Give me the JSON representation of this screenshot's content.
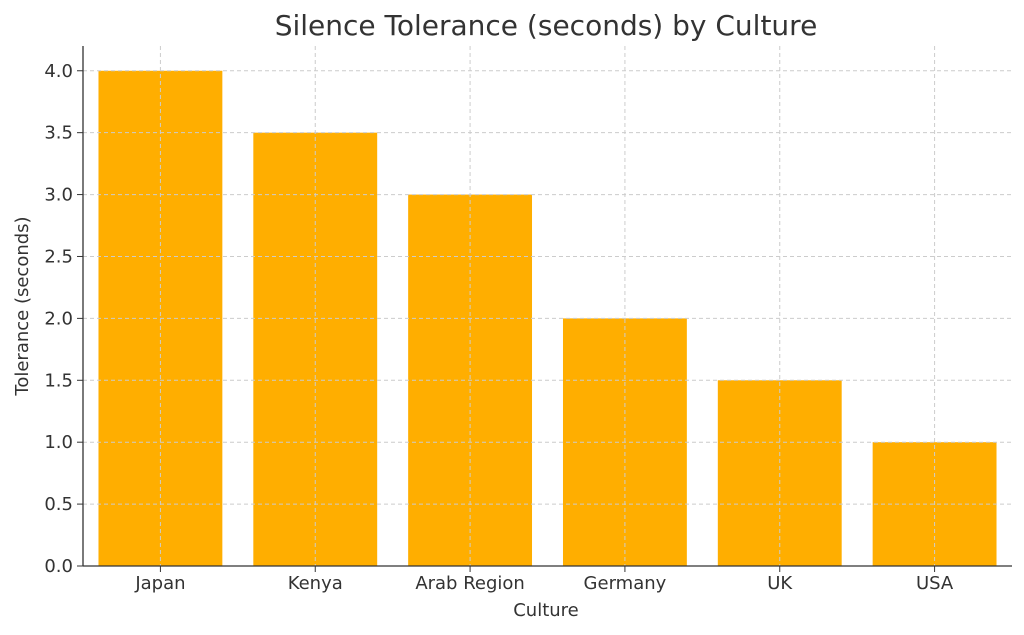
{
  "chart_data": {
    "type": "bar",
    "title": "Silence Tolerance (seconds) by Culture",
    "xlabel": "Culture",
    "ylabel": "Tolerance (seconds)",
    "categories": [
      "Japan",
      "Kenya",
      "Arab Region",
      "Germany",
      "UK",
      "USA"
    ],
    "values": [
      4.0,
      3.5,
      3.0,
      2.0,
      1.5,
      1.0
    ],
    "ylim": [
      0,
      4.2
    ],
    "yticks": [
      "0.0",
      "0.5",
      "1.0",
      "1.5",
      "2.0",
      "2.5",
      "3.0",
      "3.5",
      "4.0"
    ],
    "grid": true,
    "bar_color": "#FFAE00"
  }
}
